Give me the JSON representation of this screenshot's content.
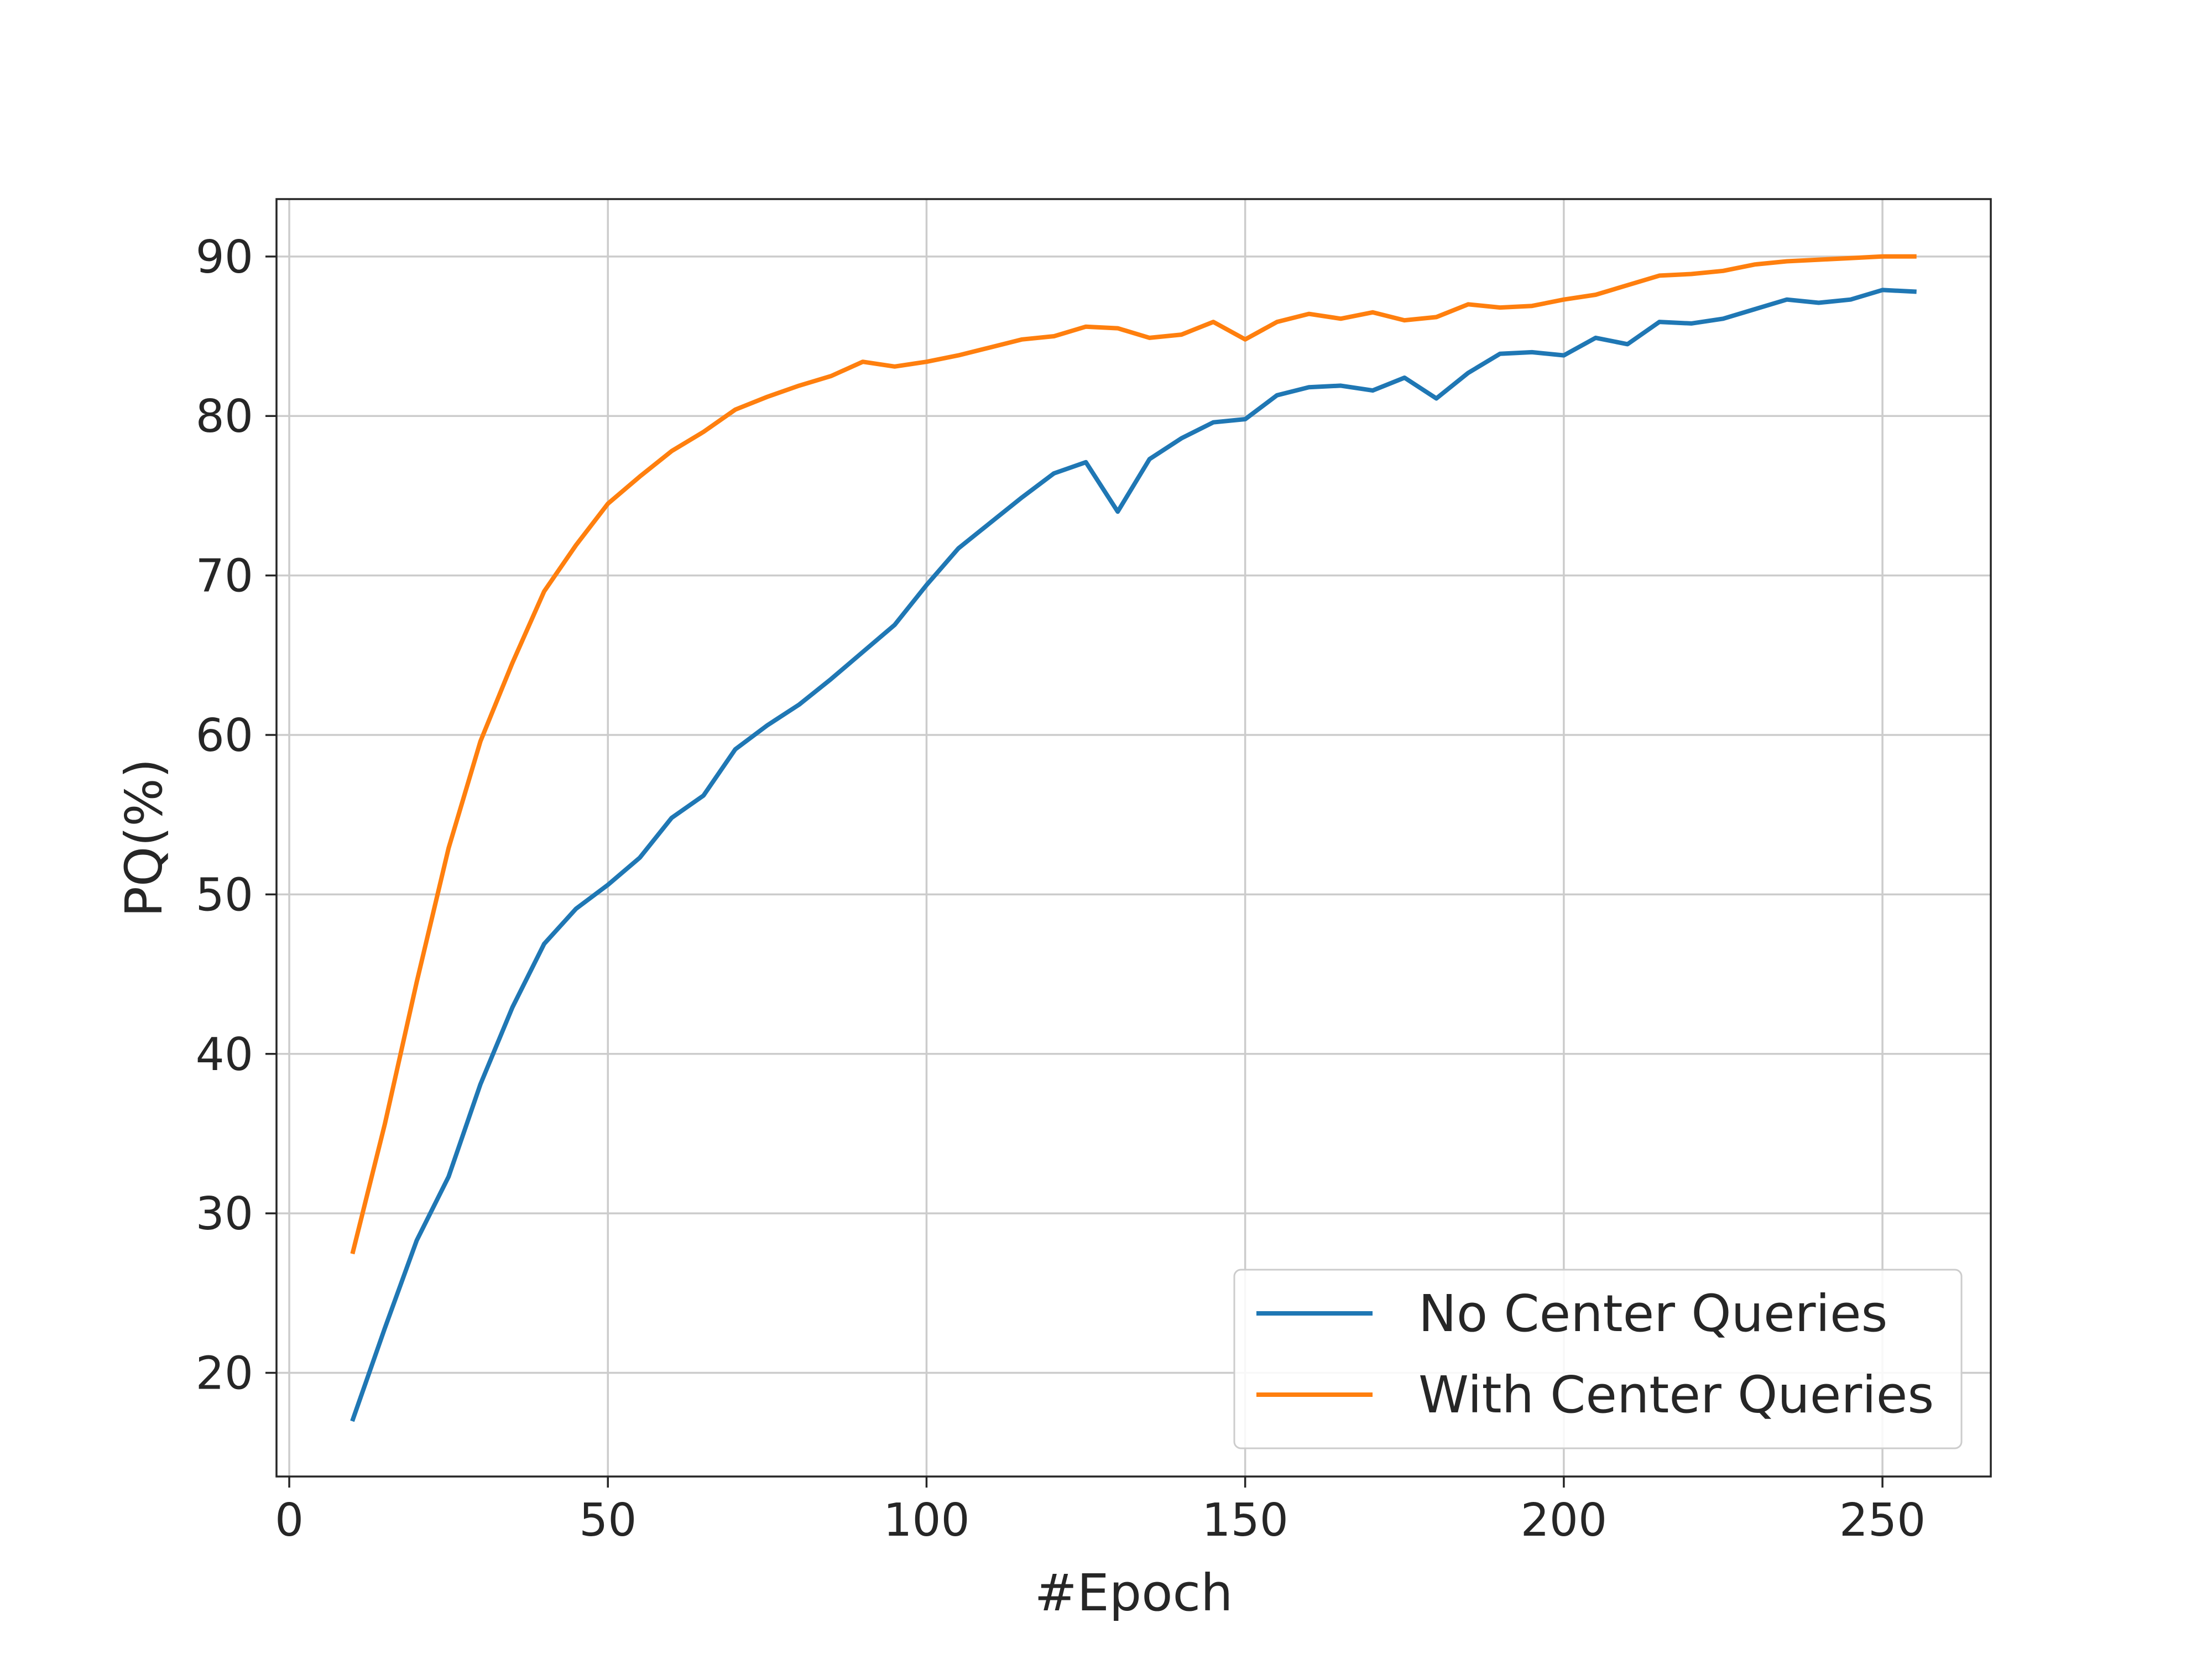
{
  "chart_data": {
    "type": "line",
    "title": "",
    "xlabel": "#Epoch",
    "ylabel": "PQ(%)",
    "xlim": [
      -2,
      267
    ],
    "ylim": [
      13.5,
      93.6
    ],
    "xticks": [
      0,
      50,
      100,
      150,
      200,
      250
    ],
    "yticks": [
      20,
      30,
      40,
      50,
      60,
      70,
      80,
      90
    ],
    "grid": true,
    "legend_position": "lower-right",
    "x": [
      10,
      15,
      20,
      25,
      30,
      35,
      40,
      45,
      50,
      55,
      60,
      65,
      70,
      75,
      80,
      85,
      90,
      95,
      100,
      105,
      110,
      115,
      120,
      125,
      130,
      135,
      140,
      145,
      150,
      155,
      160,
      165,
      170,
      175,
      180,
      185,
      190,
      195,
      200,
      205,
      210,
      215,
      220,
      225,
      230,
      235,
      240,
      245,
      250,
      255
    ],
    "series": [
      {
        "name": "No Center Queries",
        "color": "#1f77b4",
        "values": [
          17.1,
          22.8,
          28.3,
          32.3,
          38.1,
          42.9,
          46.9,
          49.1,
          50.6,
          52.3,
          54.8,
          56.2,
          59.1,
          60.6,
          61.9,
          63.5,
          65.2,
          66.9,
          69.4,
          71.7,
          73.3,
          74.9,
          76.4,
          77.1,
          74.0,
          77.3,
          78.6,
          79.6,
          79.8,
          81.3,
          81.8,
          81.9,
          81.6,
          82.4,
          81.1,
          82.7,
          83.9,
          84.0,
          83.8,
          84.9,
          84.5,
          85.9,
          85.8,
          86.1,
          86.7,
          87.3,
          87.1,
          87.3,
          87.9,
          87.8
        ]
      },
      {
        "name": "With Center Queries",
        "color": "#ff7f0e",
        "values": [
          27.6,
          35.6,
          44.5,
          52.9,
          59.6,
          64.5,
          69.0,
          71.9,
          74.5,
          76.2,
          77.8,
          79.0,
          80.4,
          81.2,
          81.9,
          82.5,
          83.4,
          83.1,
          83.4,
          83.8,
          84.3,
          84.8,
          85.0,
          85.6,
          85.5,
          84.9,
          85.1,
          85.9,
          84.8,
          85.9,
          86.4,
          86.1,
          86.5,
          86.0,
          86.2,
          87.0,
          86.8,
          86.9,
          87.3,
          87.6,
          88.2,
          88.8,
          88.9,
          89.1,
          89.5,
          89.7,
          89.8,
          89.9,
          90.0,
          90.0
        ]
      }
    ]
  }
}
